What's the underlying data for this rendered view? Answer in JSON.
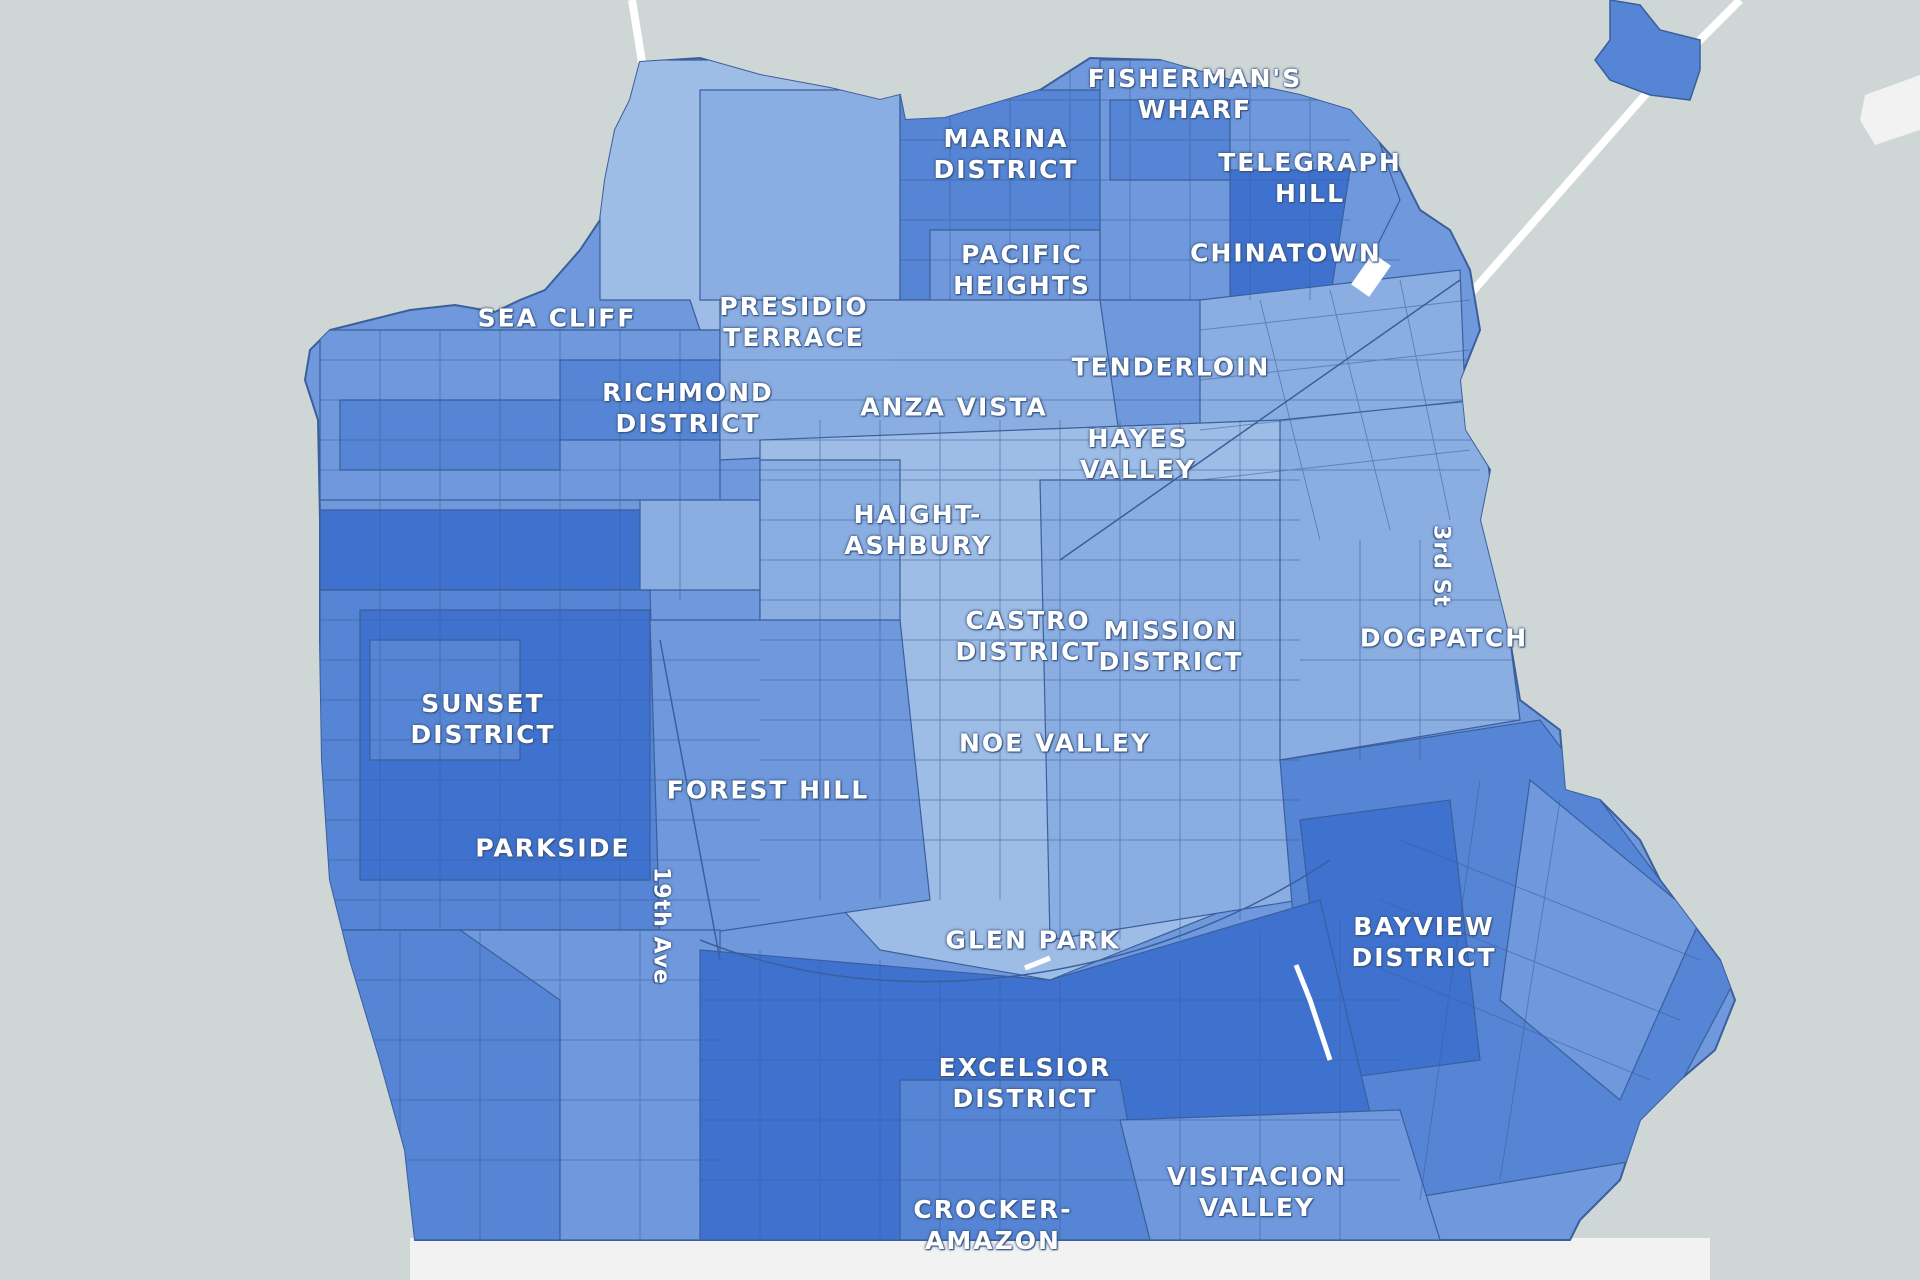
{
  "map": {
    "colors": {
      "water": "#cfd6d6",
      "land_south": "#f2f2f2",
      "tract_lightest": "#9dbde6",
      "tract_light": "#8aaee2",
      "tract_mid": "#6f99dc",
      "tract_dark": "#5585d4",
      "tract_darkest": "#3f72cf",
      "tract_border": "#3a5f9c",
      "bridge": "#ffffff"
    },
    "neighborhoods": [
      {
        "id": "fishermans-wharf",
        "lines": [
          "FISHERMAN'S",
          "WHARF"
        ]
      },
      {
        "id": "marina-district",
        "lines": [
          "MARINA",
          "DISTRICT"
        ]
      },
      {
        "id": "telegraph-hill",
        "lines": [
          "TELEGRAPH",
          "HILL"
        ]
      },
      {
        "id": "pacific-heights",
        "lines": [
          "PACIFIC",
          "HEIGHTS"
        ]
      },
      {
        "id": "chinatown",
        "lines": [
          "CHINATOWN"
        ]
      },
      {
        "id": "sea-cliff",
        "lines": [
          "SEA CLIFF"
        ]
      },
      {
        "id": "presidio-terrace",
        "lines": [
          "PRESIDIO",
          "TERRACE"
        ]
      },
      {
        "id": "tenderloin",
        "lines": [
          "TENDERLOIN"
        ]
      },
      {
        "id": "richmond-district",
        "lines": [
          "RICHMOND",
          "DISTRICT"
        ]
      },
      {
        "id": "anza-vista",
        "lines": [
          "ANZA VISTA"
        ]
      },
      {
        "id": "hayes-valley",
        "lines": [
          "HAYES",
          "VALLEY"
        ]
      },
      {
        "id": "haight-ashbury",
        "lines": [
          "HAIGHT-",
          "ASHBURY"
        ]
      },
      {
        "id": "castro-district",
        "lines": [
          "CASTRO",
          "DISTRICT"
        ]
      },
      {
        "id": "mission-district",
        "lines": [
          "MISSION",
          "DISTRICT"
        ]
      },
      {
        "id": "dogpatch",
        "lines": [
          "DOGPATCH"
        ]
      },
      {
        "id": "sunset-district",
        "lines": [
          "SUNSET",
          "DISTRICT"
        ]
      },
      {
        "id": "noe-valley",
        "lines": [
          "NOE VALLEY"
        ]
      },
      {
        "id": "forest-hill",
        "lines": [
          "FOREST HILL"
        ]
      },
      {
        "id": "parkside",
        "lines": [
          "PARKSIDE"
        ]
      },
      {
        "id": "glen-park",
        "lines": [
          "GLEN PARK"
        ]
      },
      {
        "id": "bayview-district",
        "lines": [
          "BAYVIEW",
          "DISTRICT"
        ]
      },
      {
        "id": "excelsior-district",
        "lines": [
          "EXCELSIOR",
          "DISTRICT"
        ]
      },
      {
        "id": "visitacion-valley",
        "lines": [
          "VISITACION",
          "VALLEY"
        ]
      },
      {
        "id": "crocker-amazon",
        "lines": [
          "CROCKER-",
          "AMAZON"
        ]
      }
    ],
    "streets": [
      {
        "id": "19th-ave",
        "label": "19th Ave"
      },
      {
        "id": "3rd-st",
        "label": "3rd St"
      }
    ]
  }
}
